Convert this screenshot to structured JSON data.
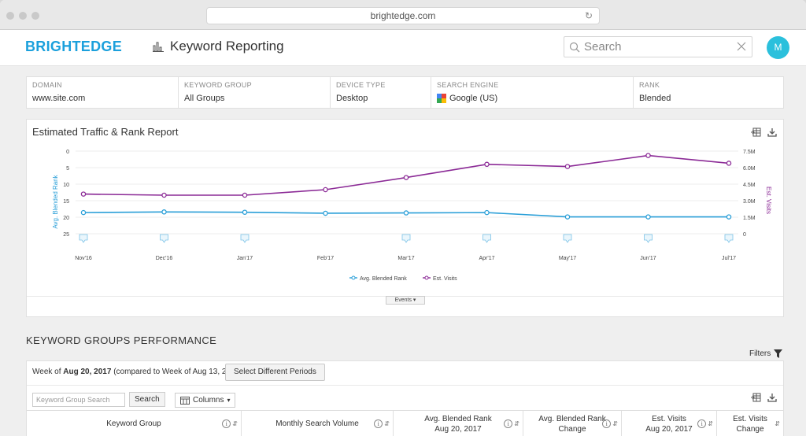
{
  "browser": {
    "url": "brightedge.com"
  },
  "header": {
    "logo": "BRIGHTEDGE",
    "title": "Keyword Reporting",
    "search_placeholder": "Search",
    "avatar_initial": "M"
  },
  "filters": [
    {
      "label": "DOMAIN",
      "value": "www.site.com"
    },
    {
      "label": "KEYWORD GROUP",
      "value": "All Groups"
    },
    {
      "label": "DEVICE TYPE",
      "value": "Desktop"
    },
    {
      "label": "SEARCH ENGINE",
      "value": "Google (US)"
    },
    {
      "label": "RANK",
      "value": "Blended"
    }
  ],
  "chart_card": {
    "title": "Estimated Traffic & Rank Report",
    "events_label": "Events"
  },
  "chart_data": {
    "type": "line",
    "x": [
      "Nov'16",
      "Dec'16",
      "Jan'17",
      "Feb'17",
      "Mar'17",
      "Apr'17",
      "May'17",
      "Jun'17",
      "Jul'17"
    ],
    "left_axis": {
      "label": "Avg. Blended Rank",
      "ticks": [
        "0",
        "5",
        "10",
        "15",
        "20",
        "25"
      ],
      "range": [
        0,
        25
      ],
      "inverted": true
    },
    "right_axis": {
      "label": "Est. Visits",
      "ticks": [
        "7.5M",
        "6.0M",
        "4.5M",
        "3.0M",
        "1.5M",
        "0"
      ],
      "range": [
        0,
        7500000
      ]
    },
    "series": [
      {
        "name": "Avg. Blended Rank",
        "axis": "left",
        "color": "#2a9fd8",
        "values": [
          18.6,
          18.4,
          18.5,
          18.8,
          18.7,
          18.6,
          19.9,
          19.9,
          19.9
        ]
      },
      {
        "name": "Est. Visits",
        "axis": "right",
        "color": "#8b2a96",
        "values": [
          3600000,
          3500000,
          3500000,
          4000000,
          5100000,
          6300000,
          6100000,
          7100000,
          6400000
        ]
      }
    ],
    "events_x_index": [
      0,
      1,
      2,
      4,
      5,
      6,
      7,
      8
    ],
    "legend_position": "bottom"
  },
  "perf": {
    "section_title": "KEYWORD GROUPS PERFORMANCE",
    "filters_label": "Filters",
    "week_prefix": "Week of",
    "week_date": "Aug 20, 2017",
    "week_compare": "(compared to Week of Aug 13, 2017)",
    "select_periods": "Select Different Periods",
    "kg_search_placeholder": "Keyword Group Search",
    "search_button": "Search",
    "columns_button": "Columns",
    "columns": [
      {
        "line1": "Keyword Group",
        "line2": ""
      },
      {
        "line1": "Monthly Search Volume",
        "line2": ""
      },
      {
        "line1": "Avg. Blended Rank",
        "line2": "Aug 20, 2017"
      },
      {
        "line1": "Avg. Blended Rank",
        "line2": "Change"
      },
      {
        "line1": "Est. Visits",
        "line2": "Aug 20, 2017"
      },
      {
        "line1": "Est. Visits",
        "line2": "Change"
      }
    ]
  }
}
